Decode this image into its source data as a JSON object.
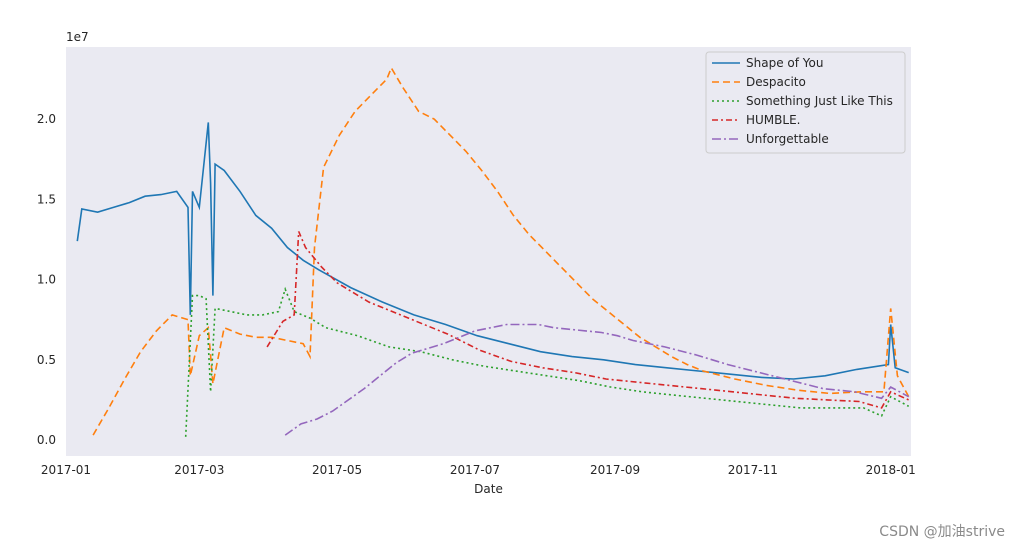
{
  "chart_data": {
    "type": "line",
    "title": "",
    "xlabel": "Date",
    "ylabel": "",
    "y_offset_label": "1e7",
    "xlim": [
      "2017-01-01",
      "2018-01-10"
    ],
    "ylim": [
      -0.1,
      2.45
    ],
    "y_scale_factor": 10000000,
    "grid": false,
    "legend_position": "top-right",
    "x_ticks": [
      {
        "date": "2017-01-01",
        "label": "2017-01"
      },
      {
        "date": "2017-03-01",
        "label": "2017-03"
      },
      {
        "date": "2017-05-01",
        "label": "2017-05"
      },
      {
        "date": "2017-07-01",
        "label": "2017-07"
      },
      {
        "date": "2017-09-01",
        "label": "2017-09"
      },
      {
        "date": "2017-11-01",
        "label": "2017-11"
      },
      {
        "date": "2018-01-01",
        "label": "2018-01"
      }
    ],
    "y_ticks": [
      {
        "value": 0.0,
        "label": "0.0"
      },
      {
        "value": 0.5,
        "label": "0.5"
      },
      {
        "value": 1.0,
        "label": "1.0"
      },
      {
        "value": 1.5,
        "label": "1.5"
      },
      {
        "value": 2.0,
        "label": "2.0"
      }
    ],
    "series": [
      {
        "name": "Shape of You",
        "color": "#1f77b4",
        "dash": "",
        "points": [
          [
            "2017-01-06",
            1.24
          ],
          [
            "2017-01-08",
            1.44
          ],
          [
            "2017-01-15",
            1.42
          ],
          [
            "2017-01-22",
            1.45
          ],
          [
            "2017-01-29",
            1.48
          ],
          [
            "2017-02-05",
            1.52
          ],
          [
            "2017-02-12",
            1.53
          ],
          [
            "2017-02-19",
            1.55
          ],
          [
            "2017-02-24",
            1.45
          ],
          [
            "2017-02-25",
            0.78
          ],
          [
            "2017-02-26",
            1.55
          ],
          [
            "2017-03-01",
            1.45
          ],
          [
            "2017-03-05",
            1.98
          ],
          [
            "2017-03-06",
            1.6
          ],
          [
            "2017-03-07",
            0.9
          ],
          [
            "2017-03-08",
            1.72
          ],
          [
            "2017-03-12",
            1.68
          ],
          [
            "2017-03-19",
            1.55
          ],
          [
            "2017-03-26",
            1.4
          ],
          [
            "2017-04-02",
            1.32
          ],
          [
            "2017-04-09",
            1.2
          ],
          [
            "2017-04-16",
            1.12
          ],
          [
            "2017-04-23",
            1.06
          ],
          [
            "2017-05-07",
            0.95
          ],
          [
            "2017-05-21",
            0.86
          ],
          [
            "2017-06-04",
            0.78
          ],
          [
            "2017-06-18",
            0.72
          ],
          [
            "2017-07-02",
            0.65
          ],
          [
            "2017-07-16",
            0.6
          ],
          [
            "2017-07-30",
            0.55
          ],
          [
            "2017-08-13",
            0.52
          ],
          [
            "2017-08-27",
            0.5
          ],
          [
            "2017-09-10",
            0.47
          ],
          [
            "2017-09-24",
            0.45
          ],
          [
            "2017-10-08",
            0.43
          ],
          [
            "2017-10-22",
            0.41
          ],
          [
            "2017-11-05",
            0.39
          ],
          [
            "2017-11-19",
            0.38
          ],
          [
            "2017-12-03",
            0.4
          ],
          [
            "2017-12-17",
            0.44
          ],
          [
            "2017-12-31",
            0.47
          ],
          [
            "2018-01-01",
            0.72
          ],
          [
            "2018-01-03",
            0.45
          ],
          [
            "2018-01-09",
            0.42
          ]
        ]
      },
      {
        "name": "Despacito",
        "color": "#ff7f0e",
        "dash": "7,4",
        "points": [
          [
            "2017-01-13",
            0.03
          ],
          [
            "2017-01-20",
            0.2
          ],
          [
            "2017-01-27",
            0.38
          ],
          [
            "2017-02-03",
            0.55
          ],
          [
            "2017-02-10",
            0.68
          ],
          [
            "2017-02-17",
            0.78
          ],
          [
            "2017-02-24",
            0.75
          ],
          [
            "2017-02-25",
            0.4
          ],
          [
            "2017-03-01",
            0.65
          ],
          [
            "2017-03-05",
            0.7
          ],
          [
            "2017-03-07",
            0.35
          ],
          [
            "2017-03-12",
            0.7
          ],
          [
            "2017-03-19",
            0.66
          ],
          [
            "2017-03-26",
            0.64
          ],
          [
            "2017-04-02",
            0.64
          ],
          [
            "2017-04-09",
            0.62
          ],
          [
            "2017-04-16",
            0.6
          ],
          [
            "2017-04-19",
            0.52
          ],
          [
            "2017-04-21",
            1.2
          ],
          [
            "2017-04-25",
            1.7
          ],
          [
            "2017-05-02",
            1.9
          ],
          [
            "2017-05-09",
            2.05
          ],
          [
            "2017-05-16",
            2.15
          ],
          [
            "2017-05-23",
            2.25
          ],
          [
            "2017-05-25",
            2.32
          ],
          [
            "2017-05-30",
            2.2
          ],
          [
            "2017-06-06",
            2.05
          ],
          [
            "2017-06-13",
            2.0
          ],
          [
            "2017-06-20",
            1.9
          ],
          [
            "2017-06-27",
            1.8
          ],
          [
            "2017-07-04",
            1.68
          ],
          [
            "2017-07-11",
            1.55
          ],
          [
            "2017-07-18",
            1.4
          ],
          [
            "2017-07-25",
            1.28
          ],
          [
            "2017-08-01",
            1.18
          ],
          [
            "2017-08-08",
            1.08
          ],
          [
            "2017-08-15",
            0.98
          ],
          [
            "2017-08-22",
            0.88
          ],
          [
            "2017-08-29",
            0.8
          ],
          [
            "2017-09-05",
            0.72
          ],
          [
            "2017-09-12",
            0.64
          ],
          [
            "2017-09-19",
            0.58
          ],
          [
            "2017-09-26",
            0.52
          ],
          [
            "2017-10-03",
            0.47
          ],
          [
            "2017-10-10",
            0.43
          ],
          [
            "2017-10-24",
            0.38
          ],
          [
            "2017-11-07",
            0.34
          ],
          [
            "2017-11-21",
            0.31
          ],
          [
            "2017-12-05",
            0.29
          ],
          [
            "2017-12-19",
            0.3
          ],
          [
            "2017-12-29",
            0.3
          ],
          [
            "2018-01-01",
            0.82
          ],
          [
            "2018-01-04",
            0.4
          ],
          [
            "2018-01-09",
            0.27
          ]
        ]
      },
      {
        "name": "Something Just Like This",
        "color": "#2ca02c",
        "dash": "2,3",
        "points": [
          [
            "2017-02-23",
            0.02
          ],
          [
            "2017-02-26",
            0.9
          ],
          [
            "2017-03-01",
            0.9
          ],
          [
            "2017-03-04",
            0.88
          ],
          [
            "2017-03-06",
            0.3
          ],
          [
            "2017-03-08",
            0.82
          ],
          [
            "2017-03-15",
            0.8
          ],
          [
            "2017-03-22",
            0.78
          ],
          [
            "2017-03-29",
            0.78
          ],
          [
            "2017-04-05",
            0.8
          ],
          [
            "2017-04-08",
            0.94
          ],
          [
            "2017-04-12",
            0.8
          ],
          [
            "2017-04-19",
            0.76
          ],
          [
            "2017-04-26",
            0.7
          ],
          [
            "2017-05-10",
            0.65
          ],
          [
            "2017-05-24",
            0.58
          ],
          [
            "2017-06-07",
            0.55
          ],
          [
            "2017-06-21",
            0.5
          ],
          [
            "2017-07-05",
            0.46
          ],
          [
            "2017-07-19",
            0.43
          ],
          [
            "2017-08-02",
            0.4
          ],
          [
            "2017-08-16",
            0.37
          ],
          [
            "2017-08-30",
            0.33
          ],
          [
            "2017-09-13",
            0.3
          ],
          [
            "2017-09-27",
            0.28
          ],
          [
            "2017-10-11",
            0.26
          ],
          [
            "2017-10-25",
            0.24
          ],
          [
            "2017-11-08",
            0.22
          ],
          [
            "2017-11-22",
            0.2
          ],
          [
            "2017-12-06",
            0.2
          ],
          [
            "2017-12-20",
            0.2
          ],
          [
            "2017-12-28",
            0.15
          ],
          [
            "2018-01-01",
            0.27
          ],
          [
            "2018-01-09",
            0.21
          ]
        ]
      },
      {
        "name": "HUMBLE.",
        "color": "#d62728",
        "dash": "6,3,2,3",
        "points": [
          [
            "2017-03-31",
            0.58
          ],
          [
            "2017-04-07",
            0.74
          ],
          [
            "2017-04-12",
            0.78
          ],
          [
            "2017-04-14",
            1.3
          ],
          [
            "2017-04-17",
            1.2
          ],
          [
            "2017-04-24",
            1.08
          ],
          [
            "2017-05-01",
            0.98
          ],
          [
            "2017-05-08",
            0.92
          ],
          [
            "2017-05-15",
            0.86
          ],
          [
            "2017-05-22",
            0.82
          ],
          [
            "2017-06-05",
            0.74
          ],
          [
            "2017-06-19",
            0.66
          ],
          [
            "2017-07-03",
            0.56
          ],
          [
            "2017-07-17",
            0.49
          ],
          [
            "2017-07-31",
            0.45
          ],
          [
            "2017-08-14",
            0.42
          ],
          [
            "2017-08-28",
            0.38
          ],
          [
            "2017-09-11",
            0.36
          ],
          [
            "2017-09-25",
            0.34
          ],
          [
            "2017-10-09",
            0.32
          ],
          [
            "2017-10-23",
            0.3
          ],
          [
            "2017-11-06",
            0.28
          ],
          [
            "2017-11-20",
            0.26
          ],
          [
            "2017-12-04",
            0.25
          ],
          [
            "2017-12-18",
            0.24
          ],
          [
            "2017-12-28",
            0.2
          ],
          [
            "2018-01-01",
            0.3
          ],
          [
            "2018-01-09",
            0.25
          ]
        ]
      },
      {
        "name": "Unforgettable",
        "color": "#9467bd",
        "dash": "9,3,2,3",
        "points": [
          [
            "2017-04-08",
            0.03
          ],
          [
            "2017-04-15",
            0.1
          ],
          [
            "2017-04-22",
            0.13
          ],
          [
            "2017-04-29",
            0.18
          ],
          [
            "2017-05-06",
            0.25
          ],
          [
            "2017-05-13",
            0.32
          ],
          [
            "2017-05-20",
            0.4
          ],
          [
            "2017-05-27",
            0.48
          ],
          [
            "2017-06-03",
            0.54
          ],
          [
            "2017-06-10",
            0.57
          ],
          [
            "2017-06-17",
            0.6
          ],
          [
            "2017-06-24",
            0.64
          ],
          [
            "2017-07-01",
            0.68
          ],
          [
            "2017-07-08",
            0.7
          ],
          [
            "2017-07-15",
            0.72
          ],
          [
            "2017-07-22",
            0.72
          ],
          [
            "2017-07-29",
            0.72
          ],
          [
            "2017-08-05",
            0.7
          ],
          [
            "2017-08-12",
            0.69
          ],
          [
            "2017-08-19",
            0.68
          ],
          [
            "2017-08-26",
            0.67
          ],
          [
            "2017-09-02",
            0.65
          ],
          [
            "2017-09-09",
            0.62
          ],
          [
            "2017-09-23",
            0.58
          ],
          [
            "2017-10-07",
            0.53
          ],
          [
            "2017-10-21",
            0.47
          ],
          [
            "2017-11-04",
            0.42
          ],
          [
            "2017-11-18",
            0.37
          ],
          [
            "2017-12-02",
            0.32
          ],
          [
            "2017-12-16",
            0.3
          ],
          [
            "2017-12-28",
            0.26
          ],
          [
            "2018-01-01",
            0.33
          ],
          [
            "2018-01-09",
            0.27
          ]
        ]
      }
    ]
  },
  "watermark": "CSDN @加油strive"
}
